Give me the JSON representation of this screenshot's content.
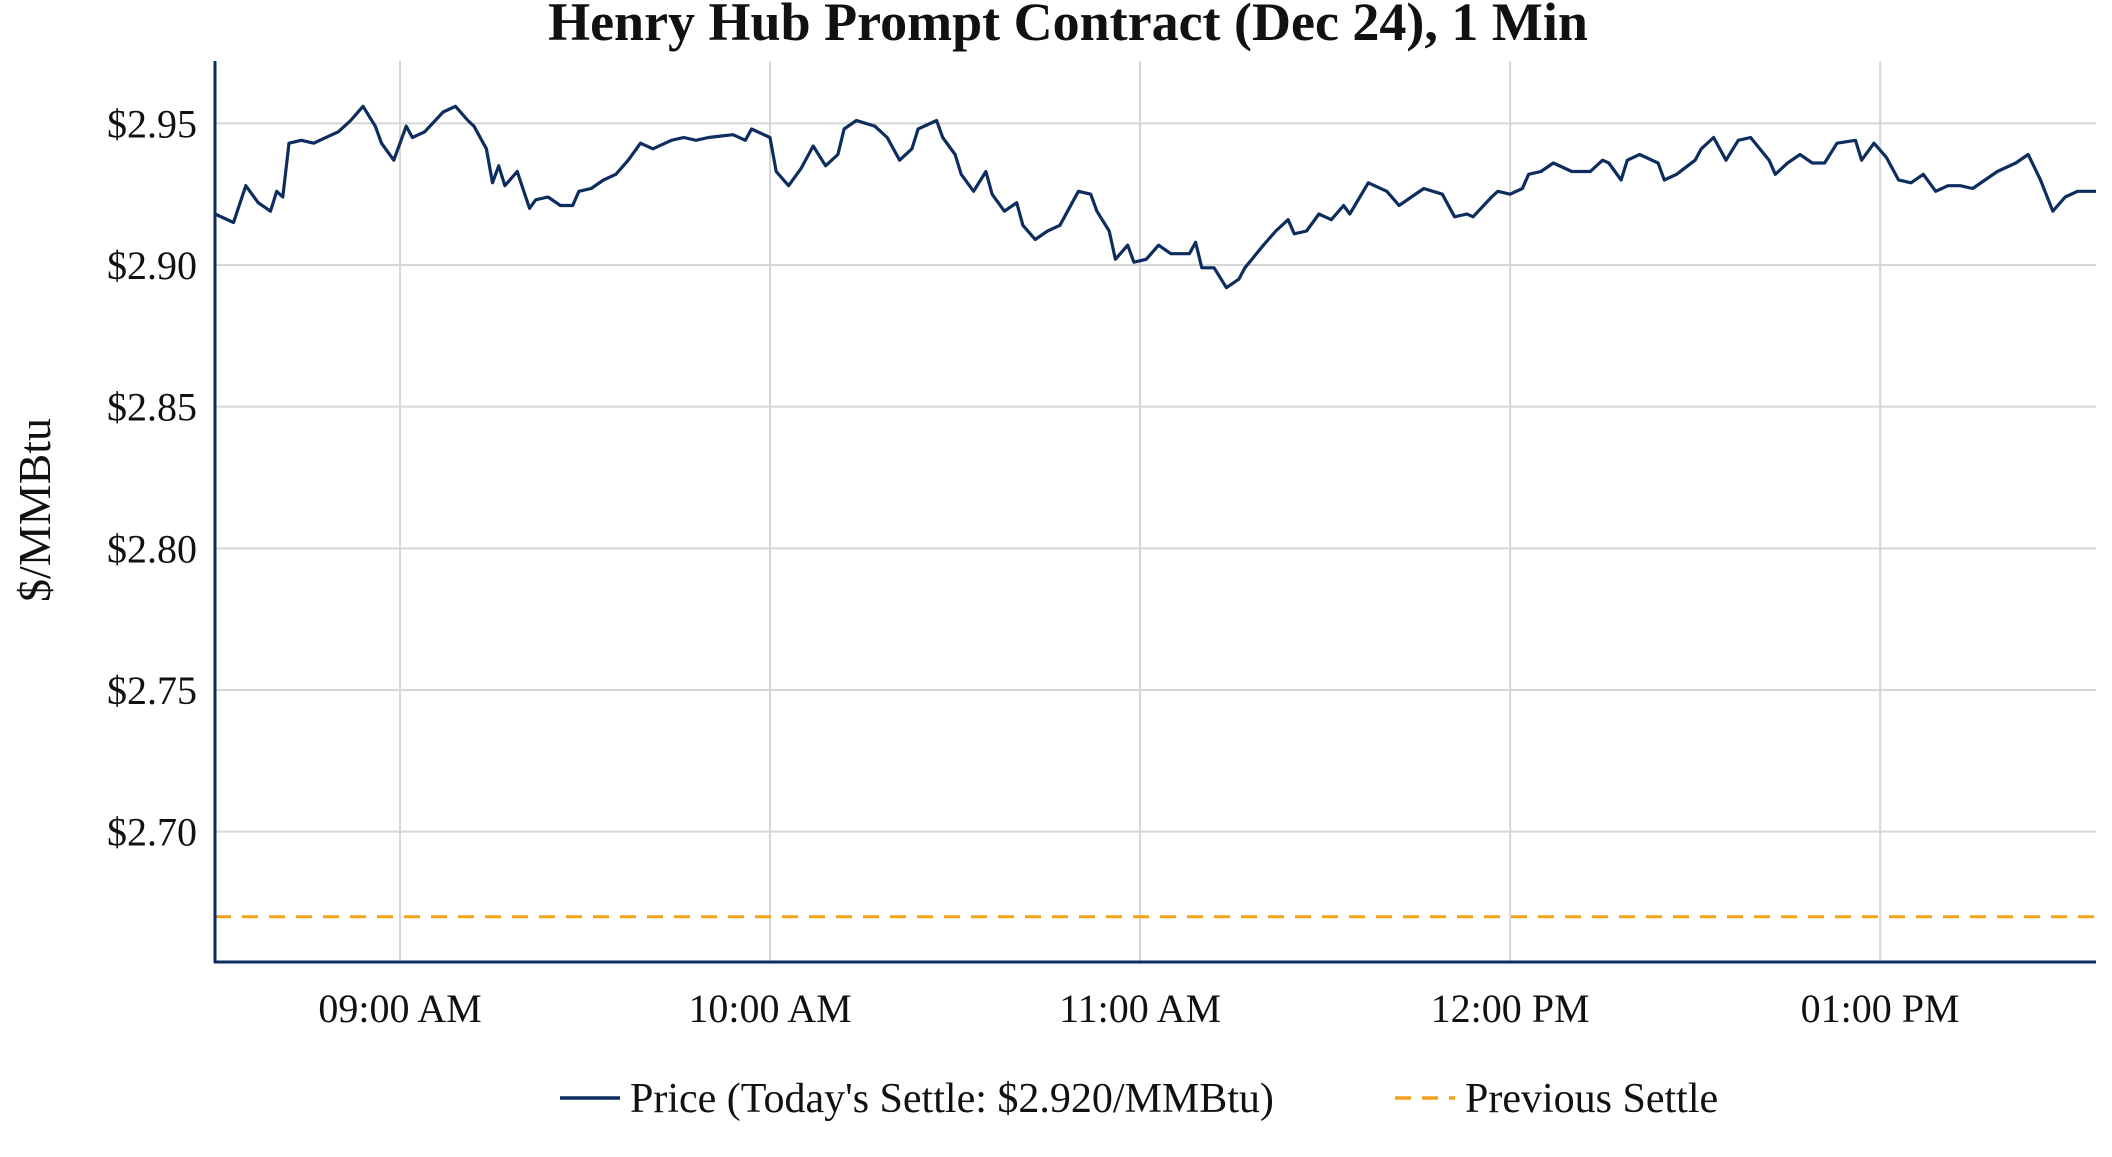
{
  "chart_data": {
    "type": "line",
    "title": "Henry Hub Prompt Contract (Dec 24), 1 Min",
    "xlabel": "",
    "ylabel": "$/MMBtu",
    "xlim": [
      "08:30",
      "13:35"
    ],
    "ylim": [
      2.654,
      2.972
    ],
    "grid": true,
    "legend_placement": "bottom-center",
    "x_ticks": [
      {
        "time": "09:00",
        "label": "09:00 AM"
      },
      {
        "time": "10:00",
        "label": "10:00 AM"
      },
      {
        "time": "11:00",
        "label": "11:00 AM"
      },
      {
        "time": "12:00",
        "label": "12:00 PM"
      },
      {
        "time": "13:00",
        "label": "01:00 PM"
      }
    ],
    "y_ticks": [
      {
        "value": 2.7,
        "label": "$2.70"
      },
      {
        "value": 2.75,
        "label": "$2.75"
      },
      {
        "value": 2.8,
        "label": "$2.80"
      },
      {
        "value": 2.85,
        "label": "$2.85"
      },
      {
        "value": 2.9,
        "label": "$2.90"
      },
      {
        "value": 2.95,
        "label": "$2.95"
      }
    ],
    "series": [
      {
        "name": "Price (Today's Settle: $2.920/MMBtu)",
        "color": "#0d2d5e",
        "style": "solid",
        "x": [
          "08:30",
          "08:33",
          "08:35",
          "08:37",
          "08:39",
          "08:40",
          "08:41",
          "08:42",
          "08:44",
          "08:46",
          "08:47",
          "08:50",
          "08:52",
          "08:54",
          "08:56",
          "08:57",
          "08:59",
          "09:01",
          "09:02",
          "09:04",
          "09:07",
          "09:09",
          "09:11",
          "09:12",
          "09:14",
          "09:15",
          "09:16",
          "09:17",
          "09:19",
          "09:21",
          "09:22",
          "09:24",
          "09:26",
          "09:28",
          "09:29",
          "09:31",
          "09:33",
          "09:35",
          "09:37",
          "09:39",
          "09:41",
          "09:44",
          "09:46",
          "09:48",
          "09:50",
          "09:54",
          "09:56",
          "09:57",
          "10:00",
          "10:01",
          "10:03",
          "10:05",
          "10:07",
          "10:09",
          "10:11",
          "10:12",
          "10:14",
          "10:17",
          "10:19",
          "10:21",
          "10:23",
          "10:24",
          "10:27",
          "10:28",
          "10:30",
          "10:31",
          "10:33",
          "10:35",
          "10:36",
          "10:38",
          "10:40",
          "10:41",
          "10:43",
          "10:45",
          "10:47",
          "10:50",
          "10:52",
          "10:53",
          "10:55",
          "10:56",
          "10:58",
          "10:59",
          "11:01",
          "11:03",
          "11:05",
          "11:08",
          "11:09",
          "11:10",
          "11:12",
          "11:14",
          "11:16",
          "11:17",
          "11:20",
          "11:22",
          "11:24",
          "11:25",
          "11:27",
          "11:29",
          "11:31",
          "11:33",
          "11:34",
          "11:37",
          "11:40",
          "11:42",
          "11:44",
          "11:46",
          "11:49",
          "11:51",
          "11:53",
          "11:54",
          "11:57",
          "11:58",
          "12:00",
          "12:02",
          "12:03",
          "12:05",
          "12:07",
          "12:10",
          "12:13",
          "12:15",
          "12:16",
          "12:18",
          "12:19",
          "12:21",
          "12:24",
          "12:25",
          "12:27",
          "12:30",
          "12:31",
          "12:33",
          "12:35",
          "12:37",
          "12:39",
          "12:42",
          "12:43",
          "12:45",
          "12:47",
          "12:49",
          "12:51",
          "12:53",
          "12:56",
          "12:57",
          "12:59",
          "13:01",
          "13:03",
          "13:05",
          "13:07",
          "13:09",
          "13:11",
          "13:13",
          "13:15",
          "13:17",
          "13:19",
          "13:22",
          "13:24",
          "13:26",
          "13:28",
          "13:30",
          "13:32",
          "13:35"
        ],
        "values": [
          2.918,
          2.915,
          2.928,
          2.922,
          2.919,
          2.926,
          2.924,
          2.943,
          2.944,
          2.943,
          2.944,
          2.947,
          2.951,
          2.956,
          2.949,
          2.943,
          2.937,
          2.949,
          2.945,
          2.947,
          2.954,
          2.956,
          2.951,
          2.949,
          2.941,
          2.929,
          2.935,
          2.928,
          2.933,
          2.92,
          2.923,
          2.924,
          2.921,
          2.921,
          2.926,
          2.927,
          2.93,
          2.932,
          2.937,
          2.943,
          2.941,
          2.944,
          2.945,
          2.944,
          2.945,
          2.946,
          2.944,
          2.948,
          2.945,
          2.933,
          2.928,
          2.934,
          2.942,
          2.935,
          2.939,
          2.948,
          2.951,
          2.949,
          2.945,
          2.937,
          2.941,
          2.948,
          2.951,
          2.945,
          2.939,
          2.932,
          2.926,
          2.933,
          2.925,
          2.919,
          2.922,
          2.914,
          2.909,
          2.912,
          2.914,
          2.926,
          2.925,
          2.919,
          2.912,
          2.902,
          2.907,
          2.901,
          2.902,
          2.907,
          2.904,
          2.904,
          2.908,
          2.899,
          2.899,
          2.892,
          2.895,
          2.899,
          2.907,
          2.912,
          2.916,
          2.911,
          2.912,
          2.918,
          2.916,
          2.921,
          2.918,
          2.929,
          2.926,
          2.921,
          2.924,
          2.927,
          2.925,
          2.917,
          2.918,
          2.917,
          2.924,
          2.926,
          2.925,
          2.927,
          2.932,
          2.933,
          2.936,
          2.933,
          2.933,
          2.937,
          2.936,
          2.93,
          2.937,
          2.939,
          2.936,
          2.93,
          2.932,
          2.937,
          2.941,
          2.945,
          2.937,
          2.944,
          2.945,
          2.937,
          2.932,
          2.936,
          2.939,
          2.936,
          2.936,
          2.943,
          2.944,
          2.937,
          2.943,
          2.938,
          2.93,
          2.929,
          2.932,
          2.926,
          2.928,
          2.928,
          2.927,
          2.93,
          2.933,
          2.936,
          2.939,
          2.93,
          2.919,
          2.924,
          2.926,
          2.926
        ]
      },
      {
        "name": "Previous Settle",
        "color": "#f5a01a",
        "style": "dashed",
        "x": [
          "08:30",
          "13:35"
        ],
        "values": [
          2.67,
          2.67
        ]
      }
    ]
  }
}
